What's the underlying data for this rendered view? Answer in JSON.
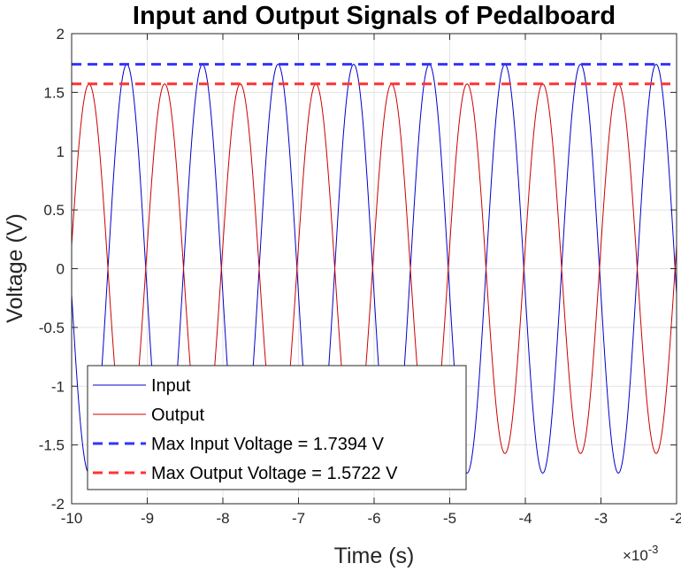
{
  "chart_data": {
    "type": "line",
    "title": "Input and Output Signals of Pedalboard",
    "xlabel": "Time (s)",
    "ylabel": "Voltage (V)",
    "x_multiplier": "×10",
    "x_multiplier_exponent": "-3",
    "xlim": [
      -10,
      -2
    ],
    "ylim": [
      -2,
      2
    ],
    "x_ticks": [
      -10,
      -9,
      -8,
      -7,
      -6,
      -5,
      -4,
      -3,
      -2
    ],
    "x_tick_labels": [
      "-10",
      "-9",
      "-8",
      "-7",
      "-6",
      "-5",
      "-4",
      "-3",
      "-2"
    ],
    "y_ticks": [
      -2,
      -1.5,
      -1,
      -0.5,
      0,
      0.5,
      1,
      1.5,
      2
    ],
    "y_tick_labels": [
      "-2",
      "-1.5",
      "-1",
      "-0.5",
      "0",
      "0.5",
      "1",
      "1.5",
      "2"
    ],
    "grid": true,
    "legend_position": "bottom-left",
    "series": [
      {
        "name": "Input",
        "style": "solid",
        "color": "#0000cc",
        "kind": "sinusoid",
        "amplitude": 1.7394,
        "period": 1.0,
        "peak_at": -9.27
      },
      {
        "name": "Output",
        "style": "solid",
        "color": "#cc0000",
        "kind": "sinusoid",
        "amplitude": 1.5722,
        "period": 1.0,
        "peak_at": -9.77
      },
      {
        "name": "Max Input Voltage = 1.7394 V",
        "style": "dashed",
        "color": "#3333ff",
        "kind": "hline",
        "value": 1.7394
      },
      {
        "name": "Max Output Voltage = 1.5722 V",
        "style": "dashed",
        "color": "#ff3333",
        "kind": "hline",
        "value": 1.5722
      }
    ]
  }
}
